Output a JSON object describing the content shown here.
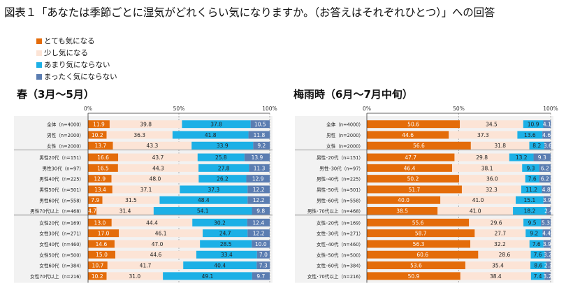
{
  "title": "図表１「あなたは季節ごとに湿気がどれくらい気になりますか。（お答えはそれぞれひとつ）」への回答",
  "legend": [
    {
      "label": "とても気になる",
      "color": "#E46C0A"
    },
    {
      "label": "少し気になる",
      "color": "#FCE4D6"
    },
    {
      "label": "あまり気にならない",
      "color": "#1CB0E6"
    },
    {
      "label": "まったく気にならない",
      "color": "#5B7DB1"
    }
  ],
  "colors": {
    "very": "#E46C0A",
    "some": "#FCE4D6",
    "little": "#1CB0E6",
    "none": "#5B7DB1",
    "grid": "#9a9a9a",
    "panel_bg": "#f2f2f2",
    "axis": "#333333"
  },
  "chart_data": [
    {
      "type": "bar",
      "stacked": true,
      "orientation": "horizontal",
      "title": "春（3月～5月）",
      "xlim": [
        0,
        100
      ],
      "ticks": [
        "0%",
        "50%",
        "100%"
      ],
      "series_names": [
        "とても気になる",
        "少し気になる",
        "あまり気にならない",
        "まったく気にならない"
      ],
      "groups": [
        {
          "rows": [
            {
              "label": "全体（n=4000）",
              "values": [
                11.9,
                39.8,
                37.8,
                10.5
              ]
            },
            {
              "label": "男性（n=2000）",
              "values": [
                10.2,
                36.3,
                41.8,
                11.8
              ]
            },
            {
              "label": "女性（n=2000）",
              "values": [
                13.7,
                43.3,
                33.9,
                9.2
              ]
            }
          ]
        },
        {
          "rows": [
            {
              "label": "男性20代（n=151）",
              "values": [
                16.6,
                43.7,
                25.8,
                13.9
              ]
            },
            {
              "label": "男性30代（n=97）",
              "values": [
                16.5,
                44.3,
                27.8,
                11.3
              ]
            },
            {
              "label": "男性40代（n=225）",
              "values": [
                12.9,
                48.0,
                26.2,
                12.9
              ]
            },
            {
              "label": "男性50代（n=501）",
              "values": [
                13.4,
                37.1,
                37.3,
                12.2
              ]
            },
            {
              "label": "男性60代（n=558）",
              "values": [
                7.9,
                31.5,
                48.4,
                12.2
              ]
            },
            {
              "label": "男性70代以上（n=468）",
              "values": [
                4.7,
                31.4,
                54.1,
                9.8
              ]
            }
          ]
        },
        {
          "rows": [
            {
              "label": "女性20代（n=169）",
              "values": [
                13.0,
                44.4,
                30.2,
                12.4
              ]
            },
            {
              "label": "女性30代（n=271）",
              "values": [
                17.0,
                46.1,
                24.7,
                12.2
              ]
            },
            {
              "label": "女性40代（n=460）",
              "values": [
                14.6,
                47.0,
                28.5,
                10.0
              ]
            },
            {
              "label": "女性50代（n=500）",
              "values": [
                15.0,
                44.6,
                33.4,
                7.0
              ]
            },
            {
              "label": "女性60代（n=384）",
              "values": [
                10.7,
                41.7,
                40.4,
                7.3
              ]
            },
            {
              "label": "女性70代以上（n=216）",
              "values": [
                10.2,
                31.0,
                49.1,
                9.7
              ]
            }
          ]
        }
      ]
    },
    {
      "type": "bar",
      "stacked": true,
      "orientation": "horizontal",
      "title": "梅雨時（6月～7月中旬）",
      "xlim": [
        0,
        100
      ],
      "ticks": [
        "0%",
        "50%",
        "100%"
      ],
      "series_names": [
        "とても気になる",
        "少し気になる",
        "あまり気にならない",
        "まったく気にならない"
      ],
      "groups": [
        {
          "rows": [
            {
              "label": "全体（n=4000）",
              "values": [
                50.6,
                34.5,
                10.9,
                4.1
              ]
            },
            {
              "label": "男性（n=2000）",
              "values": [
                44.6,
                37.3,
                13.6,
                4.6
              ]
            },
            {
              "label": "女性（n=2000）",
              "values": [
                56.6,
                31.8,
                8.2,
                3.6
              ]
            }
          ]
        },
        {
          "rows": [
            {
              "label": "男性･20代（n=151）",
              "values": [
                47.7,
                29.8,
                13.2,
                9.3
              ]
            },
            {
              "label": "男性･30代（n=97）",
              "values": [
                46.4,
                38.1,
                9.3,
                6.2
              ]
            },
            {
              "label": "男性･40代（n=225）",
              "values": [
                50.2,
                36.0,
                7.6,
                6.2
              ]
            },
            {
              "label": "男性･50代（n=501）",
              "values": [
                51.7,
                32.3,
                11.2,
                4.8
              ]
            },
            {
              "label": "男性･60代（n=558）",
              "values": [
                40.0,
                41.0,
                15.1,
                3.9
              ]
            },
            {
              "label": "男性･70代以上（n=468）",
              "values": [
                38.5,
                41.0,
                18.2,
                2.4
              ]
            }
          ]
        },
        {
          "rows": [
            {
              "label": "女性･20代（n=169）",
              "values": [
                55.6,
                29.6,
                9.5,
                5.3
              ]
            },
            {
              "label": "女性･30代（n=271）",
              "values": [
                58.7,
                27.7,
                9.2,
                4.4
              ]
            },
            {
              "label": "女性･40代（n=460）",
              "values": [
                56.3,
                32.2,
                7.6,
                3.9
              ]
            },
            {
              "label": "女性･50代（n=500）",
              "values": [
                60.6,
                28.6,
                7.6,
                3.2
              ]
            },
            {
              "label": "女性･60代（n=384）",
              "values": [
                53.6,
                35.4,
                8.6,
                2.3
              ]
            },
            {
              "label": "女性･70代以上（n=216）",
              "values": [
                50.9,
                38.4,
                7.4,
                3.2
              ]
            }
          ]
        }
      ]
    }
  ]
}
